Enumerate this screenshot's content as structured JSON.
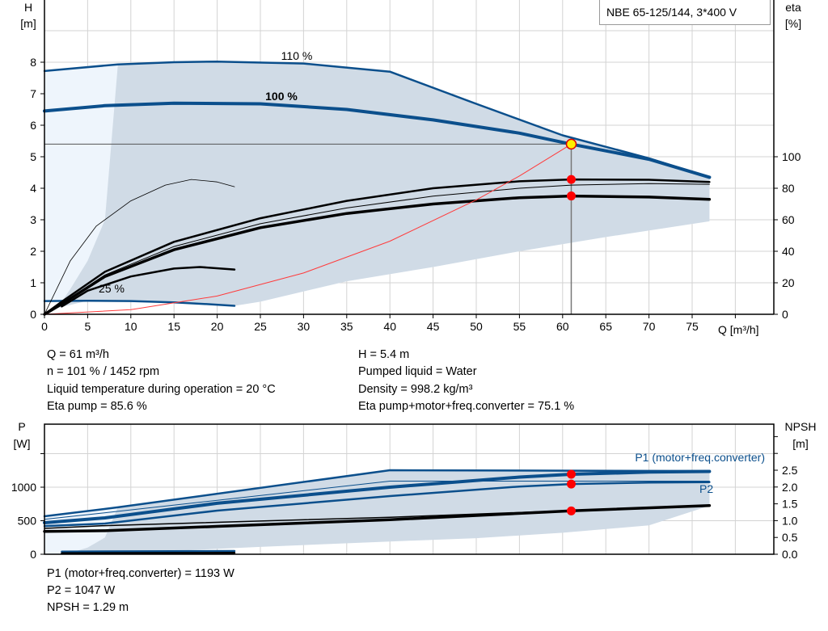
{
  "title": "NBE 65-125/144, 3*400 V",
  "colors": {
    "curve_blue": "#0b4f8c",
    "shade": "#d0dbe6",
    "shade_light": "#eef5fc",
    "system_curve": "#ff3b3b",
    "duty_point": "#ff0000",
    "op_point_fill": "#ffee00",
    "grid": "#d3d3d3"
  },
  "chart_data": [
    {
      "type": "line",
      "xlabel": "Q [m³/h]",
      "ylabel_left": [
        "H",
        "[m]"
      ],
      "ylabel_right": [
        "eta",
        "[%]"
      ],
      "xlim": [
        0,
        84
      ],
      "ylim_left": [
        0,
        10
      ],
      "ylim_right": [
        0,
        200
      ],
      "xticks": [
        0,
        5,
        10,
        15,
        20,
        25,
        30,
        35,
        40,
        45,
        50,
        55,
        60,
        65,
        70,
        75
      ],
      "yticks_left": [
        0,
        1,
        2,
        3,
        4,
        5,
        6,
        7,
        8
      ],
      "yticks_right": [
        0,
        20,
        40,
        60,
        80,
        100
      ],
      "grid": true,
      "curve_labels": {
        "h110": "110 %",
        "h100": "100 %",
        "h25": "25 %"
      },
      "operating_point": {
        "Q": 61,
        "H": 5.4
      },
      "series": [
        {
          "id": "h110",
          "axis": "left",
          "width": 2.5,
          "color": "#0b4f8c",
          "points": [
            [
              0,
              7.72
            ],
            [
              8.5,
              7.93
            ],
            [
              15,
              8.0
            ],
            [
              20,
              8.02
            ],
            [
              30,
              7.96
            ],
            [
              40,
              7.7
            ],
            [
              50,
              6.68
            ],
            [
              60,
              5.68
            ],
            [
              70,
              4.95
            ],
            [
              77,
              4.35
            ]
          ]
        },
        {
          "id": "h100",
          "axis": "left",
          "width": 4,
          "color": "#0b4f8c",
          "points": [
            [
              0,
              6.45
            ],
            [
              7,
              6.62
            ],
            [
              15,
              6.7
            ],
            [
              25,
              6.68
            ],
            [
              35,
              6.5
            ],
            [
              45,
              6.17
            ],
            [
              55,
              5.75
            ],
            [
              61,
              5.4
            ],
            [
              70,
              4.92
            ],
            [
              77,
              4.35
            ]
          ]
        },
        {
          "id": "h25",
          "axis": "left",
          "width": 2.5,
          "color": "#0b4f8c",
          "points": [
            [
              0,
              0.42
            ],
            [
              5,
              0.43
            ],
            [
              10,
              0.42
            ],
            [
              15,
              0.38
            ],
            [
              19,
              0.32
            ],
            [
              22,
              0.27
            ]
          ]
        },
        {
          "id": "eta_pump",
          "axis": "right",
          "width": 2.5,
          "color": "#000",
          "points": [
            [
              0,
              0
            ],
            [
              2,
              8
            ],
            [
              7,
              27
            ],
            [
              15,
              46
            ],
            [
              25,
              61
            ],
            [
              35,
              72
            ],
            [
              45,
              80
            ],
            [
              55,
              84.4
            ],
            [
              61,
              85.6
            ],
            [
              70,
              85.4
            ],
            [
              77,
              84
            ]
          ]
        },
        {
          "id": "eta_pump_thin",
          "axis": "right",
          "width": 1,
          "color": "#000",
          "points": [
            [
              0,
              0
            ],
            [
              2,
              7
            ],
            [
              7,
              25
            ],
            [
              15,
              43
            ],
            [
              25,
              57.5
            ],
            [
              35,
              67.5
            ],
            [
              45,
              75
            ],
            [
              55,
              80
            ],
            [
              61,
              82
            ],
            [
              70,
              83
            ],
            [
              77,
              82.5
            ]
          ]
        },
        {
          "id": "eta_total",
          "axis": "right",
          "width": 3.5,
          "color": "#000",
          "points": [
            [
              0,
              0
            ],
            [
              2,
              6.5
            ],
            [
              7,
              24
            ],
            [
              15,
              41
            ],
            [
              25,
              55
            ],
            [
              35,
              64
            ],
            [
              45,
              70
            ],
            [
              55,
              74
            ],
            [
              61,
              75.1
            ],
            [
              70,
              74.4
            ],
            [
              77,
              73
            ]
          ]
        },
        {
          "id": "eta_min_thin",
          "axis": "right",
          "width": 0.8,
          "color": "#000",
          "points": [
            [
              0,
              0
            ],
            [
              3,
              34
            ],
            [
              6,
              56
            ],
            [
              10,
              72
            ],
            [
              14,
              82
            ],
            [
              17,
              85.6
            ],
            [
              20,
              84
            ],
            [
              22,
              81
            ]
          ]
        },
        {
          "id": "eta_25",
          "axis": "right",
          "width": 2.5,
          "color": "#000",
          "points": [
            [
              2,
              5
            ],
            [
              5,
              15
            ],
            [
              10,
              24
            ],
            [
              15,
              29
            ],
            [
              18,
              30
            ],
            [
              22,
              28.4
            ]
          ]
        },
        {
          "id": "system_curve",
          "axis": "left",
          "width": 1,
          "color": "#ff3b3b",
          "points": [
            [
              0,
              0
            ],
            [
              10,
              0.145
            ],
            [
              20,
              0.58
            ],
            [
              30,
              1.31
            ],
            [
              40,
              2.32
            ],
            [
              50,
              3.63
            ],
            [
              55,
              4.39
            ],
            [
              61,
              5.4
            ]
          ]
        }
      ],
      "duty_points": [
        {
          "Q": 61,
          "eta": 85.6
        },
        {
          "Q": 61,
          "eta": 75.1
        }
      ],
      "shade_lower": [
        [
          77,
          2.95
        ],
        [
          65,
          2.45
        ],
        [
          55,
          2.0
        ],
        [
          45,
          1.5
        ],
        [
          35,
          1.05
        ],
        [
          25,
          0.4
        ],
        [
          22,
          0.27
        ]
      ]
    },
    {
      "type": "line",
      "ylabel_left": [
        "P",
        "[W]"
      ],
      "ylabel_right": [
        "NPSH",
        "[m]"
      ],
      "ylim_left": [
        0,
        1950
      ],
      "ylim_right": [
        0,
        3.9
      ],
      "yticks_left": [
        0,
        500,
        1000
      ],
      "yticks_right": [
        "0.0",
        "0.5",
        "1.0",
        "1.5",
        "2.0",
        "2.5"
      ],
      "grid": true,
      "curve_labels": {
        "p1": "P1 (motor+freq.converter)",
        "p2": "P2"
      },
      "series": [
        {
          "id": "p1_max",
          "axis": "left",
          "width": 2.5,
          "color": "#0b4f8c",
          "points": [
            [
              0,
              566
            ],
            [
              8.5,
              700
            ],
            [
              40,
              1253
            ],
            [
              77,
              1241
            ]
          ]
        },
        {
          "id": "p2_max",
          "axis": "left",
          "width": 1,
          "color": "#0b4f8c",
          "points": [
            [
              0,
              520
            ],
            [
              8.5,
              640
            ],
            [
              40,
              1090
            ],
            [
              77,
              1090
            ]
          ]
        },
        {
          "id": "p1_100",
          "axis": "left",
          "width": 4,
          "color": "#0b4f8c",
          "points": [
            [
              0,
              470
            ],
            [
              7,
              542
            ],
            [
              20,
              760
            ],
            [
              40,
              1000
            ],
            [
              55,
              1150
            ],
            [
              61,
              1193
            ],
            [
              70,
              1225
            ],
            [
              77,
              1235
            ]
          ]
        },
        {
          "id": "p2_100",
          "axis": "left",
          "width": 2.5,
          "color": "#0b4f8c",
          "points": [
            [
              0,
              420
            ],
            [
              7,
              458
            ],
            [
              20,
              650
            ],
            [
              40,
              867
            ],
            [
              55,
              1010
            ],
            [
              61,
              1047
            ],
            [
              70,
              1070
            ],
            [
              77,
              1075
            ]
          ]
        },
        {
          "id": "npsh_thin",
          "axis": "right",
          "width": 1.5,
          "color": "#000",
          "points": [
            [
              0,
              0.77
            ],
            [
              7,
              0.85
            ],
            [
              40,
              1.1
            ],
            [
              77,
              1.45
            ]
          ]
        },
        {
          "id": "npsh",
          "axis": "right",
          "width": 3.5,
          "color": "#000",
          "points": [
            [
              0,
              0.68
            ],
            [
              7,
              0.7
            ],
            [
              20,
              0.83
            ],
            [
              40,
              1.03
            ],
            [
              61,
              1.29
            ],
            [
              77,
              1.45
            ]
          ]
        },
        {
          "id": "p1_25",
          "axis": "left",
          "width": 2.5,
          "color": "#0b4f8c",
          "points": [
            [
              2,
              40
            ],
            [
              22,
              48
            ]
          ]
        },
        {
          "id": "npsh_25",
          "axis": "right",
          "width": 2.5,
          "color": "#000",
          "points": [
            [
              2,
              0.03
            ],
            [
              22,
              0.04
            ]
          ]
        }
      ],
      "duty_points": [
        {
          "Q": 61,
          "P": 1193
        },
        {
          "Q": 61,
          "P": 1047
        },
        {
          "Q": 61,
          "NPSH": 1.29
        }
      ],
      "shade_lower": [
        [
          77,
          723
        ],
        [
          70,
          430
        ],
        [
          60,
          320
        ],
        [
          50,
          240
        ],
        [
          40,
          190
        ],
        [
          25,
          110
        ],
        [
          10,
          20
        ],
        [
          8.5,
          0
        ]
      ]
    }
  ],
  "info_top_left": [
    "Q = 61 m³/h",
    "n = 101 % / 1452 rpm",
    "Liquid temperature during operation = 20 °C",
    "Eta pump = 85.6 %"
  ],
  "info_top_right": [
    "H = 5.4 m",
    "Pumped liquid = Water",
    "Density = 998.2 kg/m³",
    "Eta pump+motor+freq.converter = 75.1 %"
  ],
  "info_bottom": [
    "P1 (motor+freq.converter) = 1193 W",
    "P2 = 1047 W",
    "NPSH = 1.29 m"
  ]
}
